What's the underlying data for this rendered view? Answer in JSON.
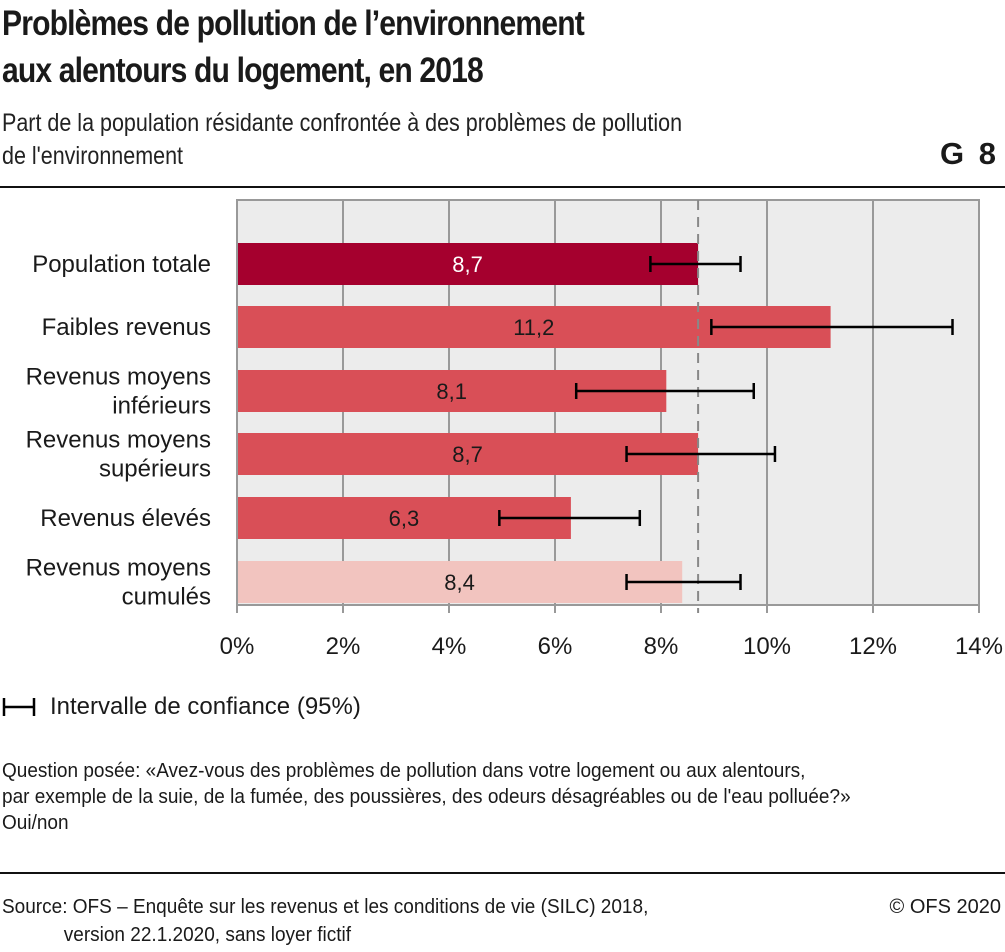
{
  "header": {
    "title_line1": "Problèmes de pollution de l’environnement",
    "title_line2": "aux alentours du logement, en 2018",
    "subtitle_line1": "Part de la population résidante confrontée à des problèmes de pollution",
    "subtitle_line2": "de l'environnement",
    "graphic_number": "G 8"
  },
  "legend": {
    "ci_label": "Intervalle de confiance (95%)"
  },
  "note": {
    "line1": "Question posée: «Avez-vous des problèmes de pollution dans votre logement ou aux alentours,",
    "line2": "par exemple de la suie, de la fumée, des poussières, des odeurs désagréables ou de l'eau polluée?»",
    "line3": "Oui/non"
  },
  "footer": {
    "source_line1": "Source: OFS – Enquête sur les revenus et les conditions de vie (SILC) 2018,",
    "source_line2": "version 22.1.2020, sans loyer fictif",
    "copyright": "© OFS 2020"
  },
  "colors": {
    "total": "#a5002e",
    "group": "#d94f57",
    "cumulated": "#f2c4bf",
    "plot_bg": "#ececec",
    "grid": "#999999",
    "errorbar": "#000000"
  },
  "chart_data": {
    "type": "bar",
    "orientation": "horizontal",
    "title": "Problèmes de pollution de l’environnement aux alentours du logement, en 2018",
    "subtitle": "Part de la population résidante confrontée à des problèmes de pollution de l'environnement",
    "xlabel": "",
    "ylabel": "",
    "xlim": [
      0,
      14
    ],
    "x_ticks": [
      0,
      2,
      4,
      6,
      8,
      10,
      12,
      14
    ],
    "x_tick_labels": [
      "0%",
      "2%",
      "4%",
      "6%",
      "8%",
      "10%",
      "12%",
      "14%"
    ],
    "grid": true,
    "reference_line": {
      "value": 8.7,
      "style": "dashed",
      "label": "Population totale"
    },
    "categories": [
      [
        "Population totale"
      ],
      [
        "Faibles revenus"
      ],
      [
        "Revenus moyens",
        "inférieurs"
      ],
      [
        "Revenus moyens",
        "supérieurs"
      ],
      [
        "Revenus élevés"
      ],
      [
        "Revenus moyens",
        "cumulés"
      ]
    ],
    "values": [
      8.7,
      11.2,
      8.1,
      8.7,
      6.3,
      8.4
    ],
    "value_labels": [
      "8,7",
      "11,2",
      "8,1",
      "8,7",
      "6,3",
      "8,4"
    ],
    "ci_low": [
      7.8,
      8.95,
      6.4,
      7.35,
      4.95,
      7.35
    ],
    "ci_high": [
      9.5,
      13.5,
      9.75,
      10.15,
      7.6,
      9.5
    ],
    "bar_color_keys": [
      "total",
      "group",
      "group",
      "group",
      "group",
      "cumulated"
    ],
    "label_colors": [
      "#ffffff",
      "#1a1a1a",
      "#1a1a1a",
      "#1a1a1a",
      "#1a1a1a",
      "#1a1a1a"
    ],
    "legend": [
      "Intervalle de confiance (95%)"
    ],
    "legend_position": "bottom-left"
  }
}
